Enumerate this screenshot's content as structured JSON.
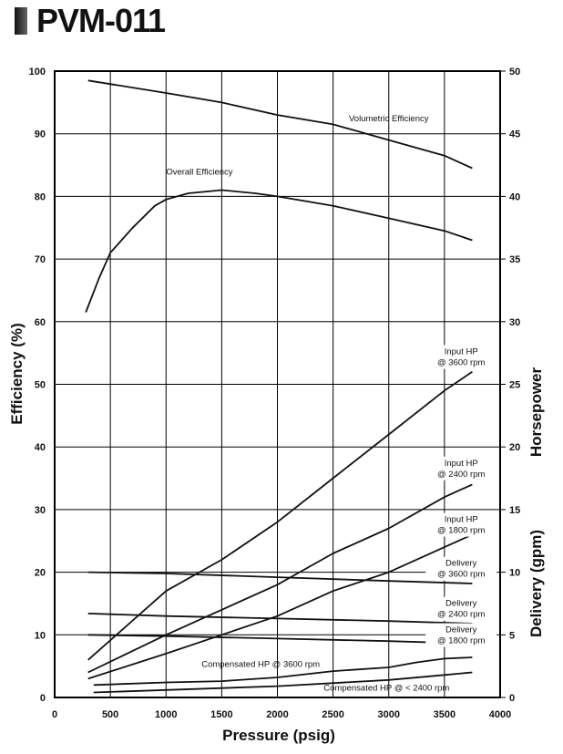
{
  "page_title": "PVM-011",
  "chart_data": {
    "type": "line",
    "xlabel": "Pressure (psig)",
    "ylabel_left": "Efficiency (%)",
    "ylabel_right_1": "Horsepower",
    "ylabel_right_2": "Delivery (gpm)",
    "xlim": [
      0,
      4000
    ],
    "ylim_left": [
      0,
      100
    ],
    "ylim_right": [
      0,
      50
    ],
    "x_ticks": [
      "0",
      "500",
      "1000",
      "1500",
      "2000",
      "2500",
      "3000",
      "3500",
      "4000"
    ],
    "y_left_ticks": [
      "0",
      "10",
      "20",
      "30",
      "40",
      "50",
      "60",
      "70",
      "80",
      "90",
      "100"
    ],
    "y_right_ticks": [
      "0",
      "5",
      "10",
      "15",
      "20",
      "25",
      "30",
      "35",
      "40",
      "45",
      "50"
    ],
    "grid": true,
    "series": [
      {
        "name": "Volumetric Efficiency",
        "axis": "left",
        "points": [
          [
            300,
            98.5
          ],
          [
            1000,
            96.5
          ],
          [
            1500,
            95
          ],
          [
            2000,
            93
          ],
          [
            2500,
            91.5
          ],
          [
            3000,
            89
          ],
          [
            3500,
            86.5
          ],
          [
            3750,
            84.5
          ]
        ],
        "label_lines": [
          "Volumetric Efficiency"
        ],
        "label_at": [
          3000,
          92
        ]
      },
      {
        "name": "Overall Efficiency",
        "axis": "left",
        "points": [
          [
            280,
            61.5
          ],
          [
            400,
            67
          ],
          [
            500,
            71
          ],
          [
            700,
            75
          ],
          [
            900,
            78.5
          ],
          [
            1000,
            79.5
          ],
          [
            1200,
            80.5
          ],
          [
            1500,
            81
          ],
          [
            1800,
            80.5
          ],
          [
            2000,
            80
          ],
          [
            2500,
            78.5
          ],
          [
            3000,
            76.5
          ],
          [
            3500,
            74.5
          ],
          [
            3750,
            73
          ]
        ],
        "label_lines": [
          "Overall Efficiency"
        ],
        "label_at": [
          1300,
          83.5
        ]
      },
      {
        "name": "Input HP @ 3600 rpm",
        "axis": "right",
        "points": [
          [
            300,
            3
          ],
          [
            1000,
            8.5
          ],
          [
            1500,
            11
          ],
          [
            2000,
            14
          ],
          [
            2500,
            17.5
          ],
          [
            3000,
            21
          ],
          [
            3500,
            24.5
          ],
          [
            3750,
            26
          ]
        ],
        "label_lines": [
          "Input HP",
          "@ 3600 rpm"
        ],
        "label_at": [
          3650,
          27.4
        ]
      },
      {
        "name": "Input HP @ 2400 rpm",
        "axis": "right",
        "points": [
          [
            300,
            2
          ],
          [
            1000,
            5
          ],
          [
            1500,
            7
          ],
          [
            2000,
            9
          ],
          [
            2500,
            11.5
          ],
          [
            3000,
            13.5
          ],
          [
            3500,
            16
          ],
          [
            3750,
            17
          ]
        ],
        "label_lines": [
          "Input HP",
          "@ 2400 rpm"
        ],
        "label_at": [
          3650,
          18.5
        ]
      },
      {
        "name": "Input HP @ 1800 rpm",
        "axis": "right",
        "points": [
          [
            300,
            1.5
          ],
          [
            1000,
            3.5
          ],
          [
            1500,
            5
          ],
          [
            2000,
            6.5
          ],
          [
            2500,
            8.5
          ],
          [
            3000,
            10
          ],
          [
            3500,
            12
          ],
          [
            3750,
            13
          ]
        ],
        "label_lines": [
          "Input HP",
          "@ 1800 rpm"
        ],
        "label_at": [
          3650,
          14.0
        ]
      },
      {
        "name": "Delivery @ 3600 rpm",
        "axis": "right",
        "points": [
          [
            300,
            10
          ],
          [
            1000,
            9.9
          ],
          [
            2000,
            9.6
          ],
          [
            3000,
            9.3
          ],
          [
            3750,
            9.1
          ]
        ],
        "label_lines": [
          "Delivery",
          "@ 3600 rpm"
        ],
        "label_at": [
          3650,
          10.5
        ]
      },
      {
        "name": "Delivery @ 2400 rpm",
        "axis": "right",
        "points": [
          [
            300,
            6.7
          ],
          [
            1000,
            6.5
          ],
          [
            2000,
            6.3
          ],
          [
            3000,
            6.1
          ],
          [
            3750,
            5.9
          ]
        ],
        "label_lines": [
          "Delivery",
          "@ 2400 rpm"
        ],
        "label_at": [
          3650,
          7.3
        ]
      },
      {
        "name": "Delivery @ 1800 rpm",
        "axis": "right",
        "points": [
          [
            300,
            5
          ],
          [
            1000,
            4.9
          ],
          [
            2000,
            4.7
          ],
          [
            3000,
            4.5
          ],
          [
            3750,
            4.3
          ]
        ],
        "label_lines": [
          "Delivery",
          "@ 1800 rpm"
        ],
        "label_at": [
          3650,
          5.2
        ]
      },
      {
        "name": "Compensated HP @ 3600 rpm",
        "axis": "right",
        "points": [
          [
            350,
            1
          ],
          [
            1000,
            1.2
          ],
          [
            1500,
            1.3
          ],
          [
            2000,
            1.6
          ],
          [
            2500,
            2.1
          ],
          [
            3000,
            2.4
          ],
          [
            3250,
            2.8
          ],
          [
            3500,
            3.1
          ],
          [
            3750,
            3.2
          ]
        ],
        "label_lines": [
          "Compensated HP @ 3600 rpm"
        ],
        "label_at": [
          1850,
          2.45
        ]
      },
      {
        "name": "Compensated HP @ < 2400 rpm",
        "axis": "right",
        "points": [
          [
            350,
            0.4
          ],
          [
            1000,
            0.6
          ],
          [
            2000,
            0.9
          ],
          [
            3000,
            1.4
          ],
          [
            3500,
            1.8
          ],
          [
            3750,
            2
          ]
        ],
        "label_lines": [
          "Compensated HP @ < 2400 rpm"
        ],
        "label_at": [
          2980,
          0.55
        ]
      }
    ]
  }
}
